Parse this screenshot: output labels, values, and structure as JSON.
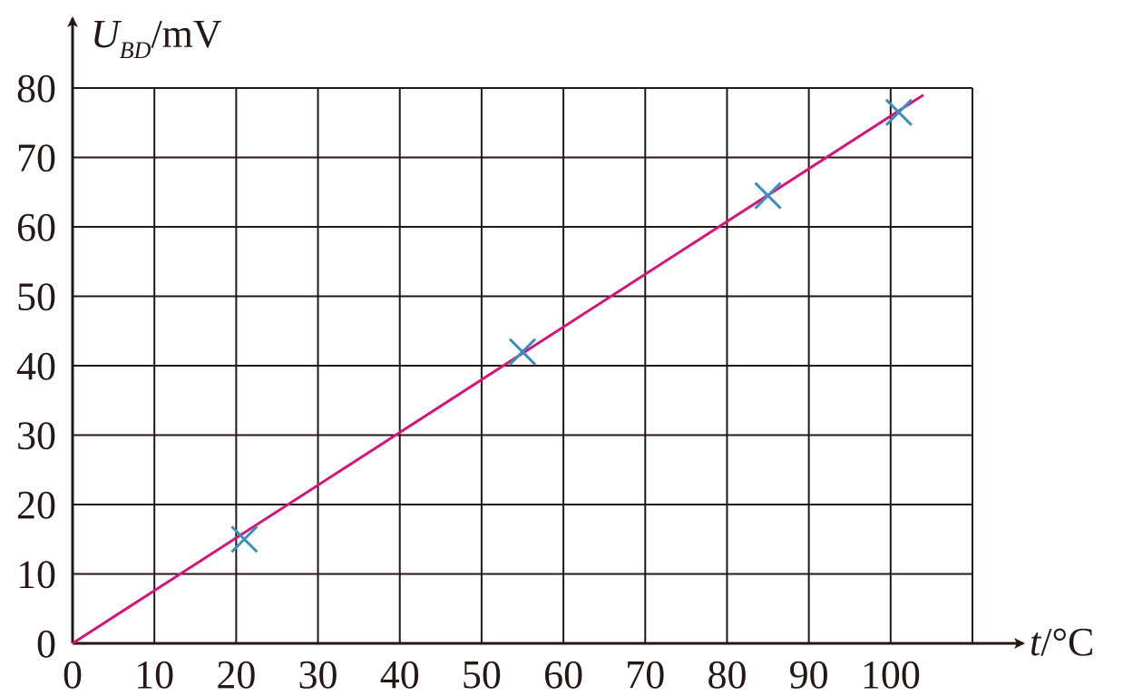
{
  "chart_data": {
    "type": "scatter",
    "x_label": {
      "symbol": "t",
      "unit": "/°C"
    },
    "y_label": {
      "symbol": "U",
      "subscript": "BD",
      "unit": "/mV"
    },
    "points": {
      "x": [
        21,
        55,
        85,
        101
      ],
      "values": [
        15,
        42,
        64.5,
        76.5
      ],
      "color": "#3a8fc0"
    },
    "fit": {
      "x": [
        0,
        104
      ],
      "values": [
        0,
        79
      ],
      "color": "#d6157a"
    },
    "xlim": [
      0,
      110
    ],
    "ylim": [
      0,
      80
    ],
    "xticks": [
      0,
      10,
      20,
      30,
      40,
      50,
      60,
      70,
      80,
      90,
      100
    ],
    "yticks": [
      0,
      10,
      20,
      30,
      40,
      50,
      60,
      70,
      80
    ],
    "grid": true
  }
}
